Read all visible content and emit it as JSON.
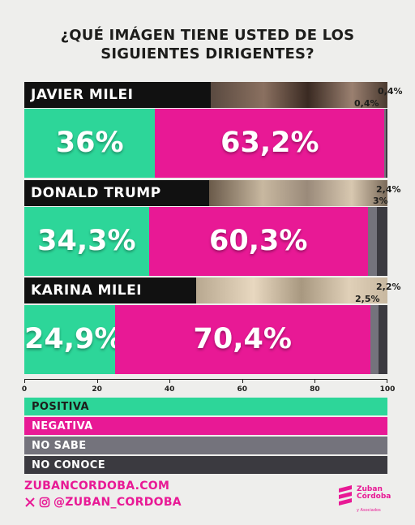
{
  "title_lines": [
    "¿QUÉ IMÁGEN TIENE USTED DE LOS",
    "SIGUIENTES DIRIGENTES?"
  ],
  "chart_data": {
    "type": "bar",
    "stacked": true,
    "orientation": "horizontal",
    "title": "¿QUÉ IMÁGEN TIENE USTED DE LOS SIGUIENTES DIRIGENTES?",
    "categories": [
      "JAVIER MILEI",
      "DONALD TRUMP",
      "KARINA MILEI"
    ],
    "series": [
      {
        "name": "POSITIVA",
        "color": "#2dd699",
        "values": [
          36,
          34.3,
          24.9
        ],
        "labels": [
          "36%",
          "34,3%",
          "24,9%"
        ]
      },
      {
        "name": "NEGATIVA",
        "color": "#e81995",
        "values": [
          63.2,
          60.3,
          70.4
        ],
        "labels": [
          "63,2%",
          "60,3%",
          "70,4%"
        ]
      },
      {
        "name": "NO SABE",
        "color": "#74737c",
        "values": [
          0.4,
          2.4,
          2.2
        ],
        "labels": [
          "0,4%",
          "2,4%",
          "2,2%"
        ]
      },
      {
        "name": "NO CONOCE",
        "color": "#3b3a40",
        "values": [
          0.4,
          3,
          2.5
        ],
        "labels": [
          "0,4%",
          "3%",
          "2,5%"
        ]
      }
    ],
    "xlim": [
      0,
      100
    ],
    "xticks": [
      "0",
      "20",
      "40",
      "60",
      "80",
      "100"
    ],
    "legend_position": "bottom"
  },
  "footer": {
    "website": "ZUBANCORDOBA.COM",
    "handle": "@ZUBAN_CORDOBA",
    "logo_line1": "Zuban",
    "logo_line2": "Córdoba",
    "logo_line3": "y Asociados"
  },
  "icons": [
    "x-logo-icon",
    "instagram-icon",
    "zuban-cordoba-logo"
  ]
}
